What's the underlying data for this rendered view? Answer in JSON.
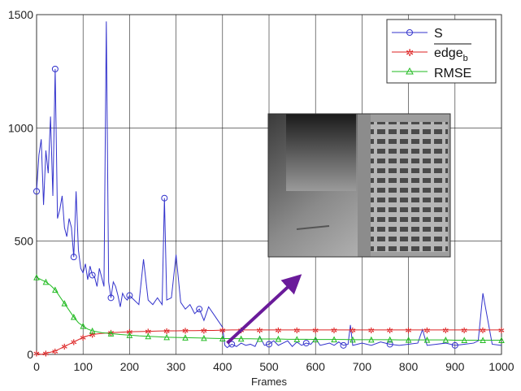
{
  "chart_data": {
    "type": "line",
    "title": "",
    "xlabel": "Frames",
    "ylabel": "",
    "xlim": [
      0,
      1000
    ],
    "ylim": [
      0,
      1500
    ],
    "xticks": [
      0,
      100,
      200,
      300,
      400,
      500,
      600,
      700,
      800,
      900,
      1000
    ],
    "yticks": [
      0,
      500,
      1000,
      1500
    ],
    "grid": true,
    "legend_position": "top-right",
    "series": [
      {
        "name": "S",
        "color": "#3333cc",
        "marker": "circle",
        "x": [
          0,
          5,
          10,
          15,
          20,
          25,
          30,
          35,
          40,
          45,
          50,
          55,
          60,
          65,
          70,
          75,
          80,
          85,
          90,
          95,
          100,
          105,
          110,
          115,
          120,
          125,
          130,
          135,
          140,
          145,
          150,
          155,
          160,
          165,
          170,
          175,
          180,
          185,
          190,
          195,
          200,
          210,
          220,
          230,
          240,
          250,
          260,
          270,
          275,
          280,
          290,
          300,
          310,
          320,
          330,
          340,
          350,
          360,
          370,
          380,
          390,
          400,
          405,
          410,
          420,
          430,
          440,
          450,
          460,
          470,
          480,
          490,
          500,
          510,
          520,
          530,
          540,
          550,
          560,
          570,
          580,
          590,
          600,
          610,
          620,
          630,
          640,
          650,
          660,
          670,
          675,
          680,
          690,
          700,
          720,
          740,
          760,
          780,
          800,
          820,
          830,
          840,
          860,
          880,
          900,
          920,
          940,
          950,
          960,
          980,
          1000
        ],
        "y": [
          720,
          880,
          950,
          660,
          900,
          800,
          1050,
          700,
          1260,
          600,
          640,
          700,
          560,
          520,
          600,
          560,
          430,
          720,
          460,
          380,
          360,
          400,
          330,
          390,
          350,
          340,
          300,
          380,
          340,
          300,
          1470,
          320,
          250,
          320,
          300,
          260,
          210,
          270,
          250,
          240,
          260,
          240,
          220,
          420,
          240,
          220,
          250,
          220,
          690,
          240,
          250,
          440,
          230,
          200,
          220,
          180,
          200,
          150,
          210,
          180,
          150,
          120,
          40,
          30,
          45,
          35,
          50,
          40,
          45,
          35,
          80,
          40,
          45,
          60,
          40,
          50,
          60,
          35,
          55,
          40,
          50,
          45,
          70,
          40,
          45,
          50,
          40,
          55,
          40,
          45,
          130,
          40,
          45,
          50,
          40,
          55,
          45,
          40,
          45,
          50,
          110,
          40,
          45,
          50,
          40,
          45,
          50,
          60,
          270,
          45,
          40
        ]
      },
      {
        "name": "edge_b",
        "color": "#dd2222",
        "marker": "star",
        "x": [
          0,
          10,
          20,
          30,
          40,
          50,
          60,
          70,
          80,
          90,
          100,
          110,
          120,
          140,
          160,
          180,
          200,
          220,
          240,
          260,
          280,
          300,
          320,
          340,
          360,
          380,
          400,
          420,
          440,
          460,
          480,
          500,
          520,
          540,
          560,
          580,
          600,
          620,
          640,
          660,
          680,
          700,
          720,
          740,
          760,
          780,
          800,
          820,
          840,
          860,
          880,
          900,
          920,
          940,
          960,
          980,
          1000
        ],
        "y": [
          5,
          0,
          5,
          10,
          15,
          25,
          35,
          45,
          55,
          65,
          75,
          82,
          88,
          93,
          96,
          98,
          100,
          101,
          102,
          103,
          104,
          104,
          105,
          105,
          106,
          106,
          107,
          108,
          108,
          108,
          108,
          108,
          108,
          108,
          108,
          108,
          108,
          108,
          108,
          108,
          108,
          108,
          108,
          108,
          108,
          108,
          108,
          108,
          108,
          108,
          108,
          108,
          108,
          108,
          108,
          108,
          108
        ]
      },
      {
        "name": "RMSE",
        "color": "#22bb22",
        "marker": "triangle",
        "x": [
          0,
          10,
          20,
          30,
          40,
          50,
          60,
          70,
          80,
          90,
          100,
          110,
          120,
          140,
          160,
          180,
          200,
          220,
          240,
          260,
          280,
          300,
          320,
          340,
          360,
          380,
          400,
          420,
          440,
          460,
          480,
          500,
          520,
          540,
          560,
          580,
          600,
          620,
          640,
          660,
          680,
          700,
          720,
          740,
          760,
          780,
          800,
          820,
          840,
          860,
          880,
          900,
          920,
          940,
          960,
          980,
          1000
        ],
        "y": [
          340,
          330,
          320,
          305,
          285,
          255,
          225,
          195,
          165,
          140,
          125,
          112,
          104,
          96,
          92,
          88,
          85,
          82,
          80,
          78,
          76,
          75,
          74,
          73,
          72,
          71,
          70,
          70,
          69,
          69,
          68,
          68,
          68,
          67,
          67,
          67,
          66,
          66,
          66,
          66,
          65,
          65,
          65,
          65,
          65,
          64,
          64,
          64,
          64,
          64,
          64,
          63,
          63,
          63,
          63,
          63,
          63
        ]
      }
    ],
    "annotations": [
      {
        "type": "arrow",
        "from": [
          410,
          50
        ],
        "to": [
          555,
          325
        ],
        "color": "#6a1b9a"
      },
      {
        "type": "inset-image",
        "description": "grayscale infrared frame"
      }
    ]
  },
  "legend": {
    "entries": [
      {
        "label": "S",
        "subscript": ""
      },
      {
        "label": "edge",
        "subscript": "b"
      },
      {
        "label": "RMSE",
        "subscript": ""
      }
    ]
  }
}
